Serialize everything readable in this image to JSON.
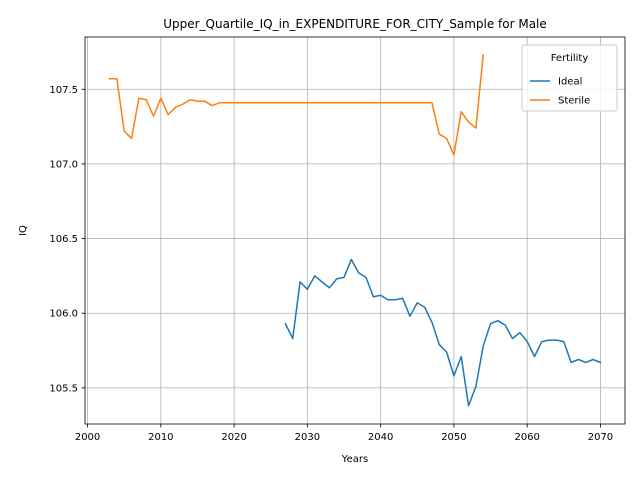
{
  "chart_data": {
    "type": "line",
    "title": "Upper_Quartile_IQ_in_EXPENDITURE_FOR_CITY_Sample for Male",
    "xlabel": "Years",
    "ylabel": "IQ",
    "xlim": [
      1999.65,
      2073.35
    ],
    "ylim": [
      105.258,
      107.85
    ],
    "xticks": [
      2000,
      2010,
      2020,
      2030,
      2040,
      2050,
      2060,
      2070
    ],
    "yticks": [
      105.5,
      106.0,
      106.5,
      107.0,
      107.5
    ],
    "ytick_labels": [
      "105.5",
      "106.0",
      "106.5",
      "107.0",
      "107.5"
    ],
    "grid": true,
    "legend": {
      "title": "Fertility",
      "placement": "top-right"
    },
    "series": [
      {
        "name": "Ideal",
        "color": "#1f77b4",
        "x": [
          2027,
          2028,
          2029,
          2030,
          2031,
          2032,
          2033,
          2034,
          2035,
          2036,
          2037,
          2038,
          2039,
          2040,
          2041,
          2042,
          2043,
          2044,
          2045,
          2046,
          2047,
          2048,
          2049,
          2050,
          2051,
          2052,
          2053,
          2054,
          2055,
          2056,
          2057,
          2058,
          2059,
          2060,
          2061,
          2062,
          2063,
          2064,
          2065,
          2066,
          2067,
          2068,
          2069,
          2070
        ],
        "y": [
          105.93,
          105.83,
          106.21,
          106.16,
          106.25,
          106.21,
          106.17,
          106.23,
          106.24,
          106.36,
          106.27,
          106.24,
          106.11,
          106.12,
          106.09,
          106.09,
          106.1,
          105.98,
          106.07,
          106.04,
          105.94,
          105.79,
          105.74,
          105.58,
          105.71,
          105.38,
          105.51,
          105.78,
          105.93,
          105.95,
          105.92,
          105.83,
          105.87,
          105.81,
          105.71,
          105.81,
          105.82,
          105.82,
          105.81,
          105.67,
          105.69,
          105.67,
          105.69,
          105.67
        ]
      },
      {
        "name": "Sterile",
        "color": "#ff7f0e",
        "x": [
          2003,
          2004,
          2005,
          2006,
          2007,
          2008,
          2009,
          2010,
          2011,
          2012,
          2013,
          2014,
          2015,
          2016,
          2017,
          2018,
          2019,
          2020,
          2021,
          2022,
          2023,
          2024,
          2025,
          2026,
          2027,
          2028,
          2029,
          2030,
          2031,
          2032,
          2033,
          2034,
          2035,
          2036,
          2037,
          2038,
          2039,
          2040,
          2041,
          2042,
          2043,
          2044,
          2045,
          2046,
          2047,
          2048,
          2049,
          2050,
          2051,
          2052,
          2053,
          2054
        ],
        "y": [
          107.57,
          107.57,
          107.22,
          107.17,
          107.44,
          107.43,
          107.32,
          107.44,
          107.33,
          107.38,
          107.4,
          107.43,
          107.42,
          107.42,
          107.39,
          107.41,
          107.41,
          107.41,
          107.41,
          107.41,
          107.41,
          107.41,
          107.41,
          107.41,
          107.41,
          107.41,
          107.41,
          107.41,
          107.41,
          107.41,
          107.41,
          107.41,
          107.41,
          107.41,
          107.41,
          107.41,
          107.41,
          107.41,
          107.41,
          107.41,
          107.41,
          107.41,
          107.41,
          107.41,
          107.41,
          107.2,
          107.17,
          107.06,
          107.35,
          107.28,
          107.24,
          107.73
        ]
      }
    ]
  }
}
